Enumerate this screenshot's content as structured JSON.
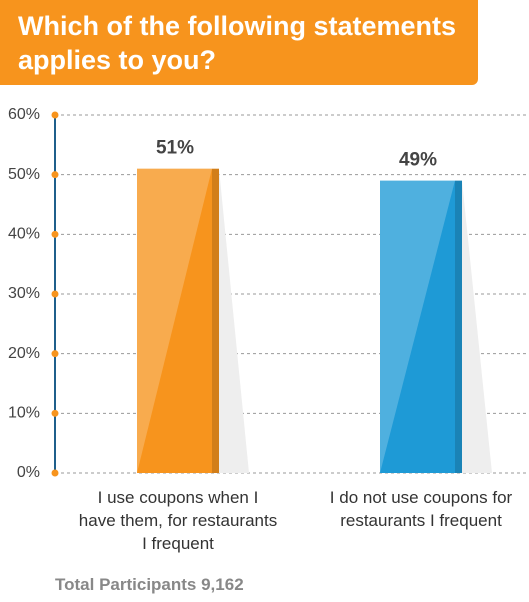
{
  "chart_data": {
    "type": "bar",
    "title": "Which of the following statements applies to you?",
    "categories": [
      "I use coupons when I have them, for restaurants I frequent",
      "I do not use coupons for restaurants I frequent"
    ],
    "values": [
      51,
      49
    ],
    "value_labels": [
      "51%",
      "49%"
    ],
    "colors": [
      "#f7941d",
      "#1e9ad6"
    ],
    "ylim": [
      0,
      60
    ],
    "yticks": [
      {
        "value": 0,
        "label": "0%"
      },
      {
        "value": 10,
        "label": "10%"
      },
      {
        "value": 20,
        "label": "20%"
      },
      {
        "value": 30,
        "label": "30%"
      },
      {
        "value": 40,
        "label": "40%"
      },
      {
        "value": 50,
        "label": "50%"
      },
      {
        "value": 60,
        "label": "60%"
      }
    ],
    "grid": true,
    "footer": "Total Participants 9,162"
  }
}
